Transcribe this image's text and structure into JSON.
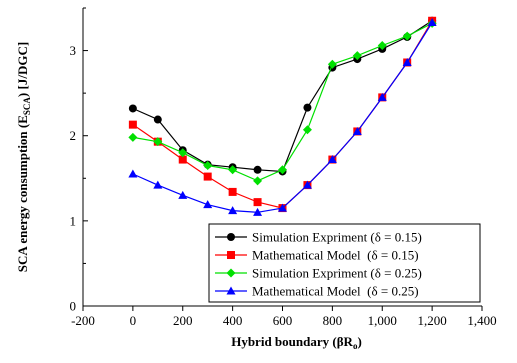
{
  "chart_data": {
    "type": "line",
    "xlabel": "Hybrid boundary (βR",
    "xlabel_sub": "o",
    "xlabel_end": ")",
    "ylabel": "SCA energy consumption (E",
    "ylabel_sub": "SCA",
    "ylabel_end": ") [J/DGC]",
    "xlim": [
      -200,
      1400
    ],
    "ylim": [
      0,
      3.5
    ],
    "xticks": [
      -200,
      0,
      200,
      400,
      600,
      800,
      1000,
      1200,
      1400
    ],
    "xtick_labels": [
      "-200",
      "0",
      "200",
      "400",
      "600",
      "800",
      "1,000",
      "1,200",
      "1,400"
    ],
    "yticks": [
      0,
      1,
      2,
      3
    ],
    "ytick_labels": [
      "0",
      "1",
      "2",
      "3"
    ],
    "grid": false,
    "legend_position": "bottom-right",
    "x": [
      0,
      100,
      200,
      300,
      400,
      500,
      600,
      700,
      800,
      900,
      1000,
      1100,
      1200
    ],
    "series": [
      {
        "name": "Simulation Expriment (δ = 0.15)",
        "color": "#000000",
        "marker": "circle",
        "values": [
          2.32,
          2.19,
          1.83,
          1.66,
          1.63,
          1.6,
          1.58,
          2.33,
          2.8,
          2.9,
          3.02,
          3.16,
          3.35
        ]
      },
      {
        "name": "Mathematical Model  (δ = 0.15)",
        "color": "#ff0000",
        "marker": "square",
        "values": [
          2.13,
          1.93,
          1.72,
          1.52,
          1.34,
          1.22,
          1.15,
          1.42,
          1.72,
          2.05,
          2.45,
          2.86,
          3.35
        ]
      },
      {
        "name": "Simulation Expriment (δ = 0.25)",
        "color": "#00e000",
        "marker": "diamond",
        "values": [
          1.98,
          1.93,
          1.8,
          1.65,
          1.6,
          1.47,
          1.6,
          2.07,
          2.84,
          2.94,
          3.06,
          3.17,
          3.32
        ]
      },
      {
        "name": "Mathematical Model  (δ = 0.25)",
        "color": "#0000ff",
        "marker": "triangle",
        "values": [
          1.55,
          1.42,
          1.3,
          1.19,
          1.12,
          1.1,
          1.15,
          1.42,
          1.72,
          2.05,
          2.45,
          2.86,
          3.33
        ]
      }
    ]
  }
}
